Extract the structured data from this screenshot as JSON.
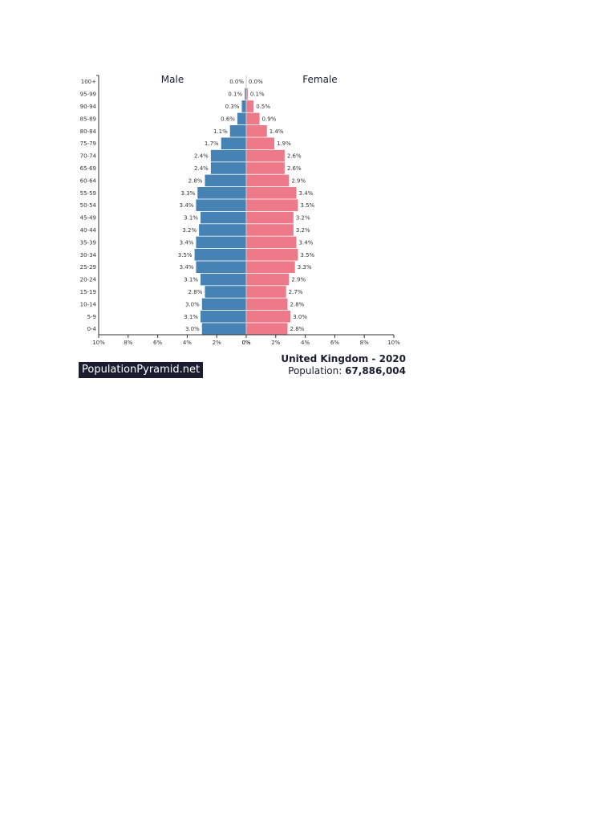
{
  "chart_data": {
    "type": "bar",
    "orientation": "horizontal",
    "layout": "population-pyramid",
    "male_label": "Male",
    "female_label": "Female",
    "colors": {
      "male": "#4682b4",
      "female": "#ee7989",
      "axis": "#333333",
      "text": "#1c1c30"
    },
    "xlim": [
      -10,
      10
    ],
    "x_ticks": [
      "10%",
      "8%",
      "6%",
      "4%",
      "2%",
      "0%",
      "0%",
      "2%",
      "4%",
      "6%",
      "8%",
      "10%"
    ],
    "x_tick_values": [
      -10,
      -8,
      -6,
      -4,
      -2,
      0,
      0,
      2,
      4,
      6,
      8,
      10
    ],
    "rows": [
      {
        "age": "100+",
        "male": 0.0,
        "female": 0.0,
        "male_label": "0.0%",
        "female_label": "0.0%"
      },
      {
        "age": "95-99",
        "male": 0.1,
        "female": 0.1,
        "male_label": "0.1%",
        "female_label": "0.1%"
      },
      {
        "age": "90-94",
        "male": 0.3,
        "female": 0.5,
        "male_label": "0.3%",
        "female_label": "0.5%"
      },
      {
        "age": "85-89",
        "male": 0.6,
        "female": 0.9,
        "male_label": "0.6%",
        "female_label": "0.9%"
      },
      {
        "age": "80-84",
        "male": 1.1,
        "female": 1.4,
        "male_label": "1.1%",
        "female_label": "1.4%"
      },
      {
        "age": "75-79",
        "male": 1.7,
        "female": 1.9,
        "male_label": "1.7%",
        "female_label": "1.9%"
      },
      {
        "age": "70-74",
        "male": 2.4,
        "female": 2.6,
        "male_label": "2.4%",
        "female_label": "2.6%"
      },
      {
        "age": "65-69",
        "male": 2.4,
        "female": 2.6,
        "male_label": "2.4%",
        "female_label": "2.6%"
      },
      {
        "age": "60-64",
        "male": 2.8,
        "female": 2.9,
        "male_label": "2.8%",
        "female_label": "2.9%"
      },
      {
        "age": "55-59",
        "male": 3.3,
        "female": 3.4,
        "male_label": "3.3%",
        "female_label": "3.4%"
      },
      {
        "age": "50-54",
        "male": 3.4,
        "female": 3.5,
        "male_label": "3.4%",
        "female_label": "3.5%"
      },
      {
        "age": "45-49",
        "male": 3.1,
        "female": 3.2,
        "male_label": "3.1%",
        "female_label": "3.2%"
      },
      {
        "age": "40-44",
        "male": 3.2,
        "female": 3.2,
        "male_label": "3.2%",
        "female_label": "3.2%"
      },
      {
        "age": "35-39",
        "male": 3.4,
        "female": 3.4,
        "male_label": "3.4%",
        "female_label": "3.4%"
      },
      {
        "age": "30-34",
        "male": 3.5,
        "female": 3.5,
        "male_label": "3.5%",
        "female_label": "3.5%"
      },
      {
        "age": "25-29",
        "male": 3.4,
        "female": 3.3,
        "male_label": "3.4%",
        "female_label": "3.3%"
      },
      {
        "age": "20-24",
        "male": 3.1,
        "female": 2.9,
        "male_label": "3.1%",
        "female_label": "2.9%"
      },
      {
        "age": "15-19",
        "male": 2.8,
        "female": 2.7,
        "male_label": "2.8%",
        "female_label": "2.7%"
      },
      {
        "age": "10-14",
        "male": 3.0,
        "female": 2.8,
        "male_label": "3.0%",
        "female_label": "2.8%"
      },
      {
        "age": "5-9",
        "male": 3.1,
        "female": 3.0,
        "male_label": "3.1%",
        "female_label": "3.0%"
      },
      {
        "age": "0-4",
        "male": 3.0,
        "female": 2.8,
        "male_label": "3.0%",
        "female_label": "2.8%"
      }
    ]
  },
  "footer": {
    "brand": "PopulationPyramid.net",
    "country_year": "United Kingdom - 2020",
    "population_label": "Population:",
    "population_value": "67,886,004"
  }
}
